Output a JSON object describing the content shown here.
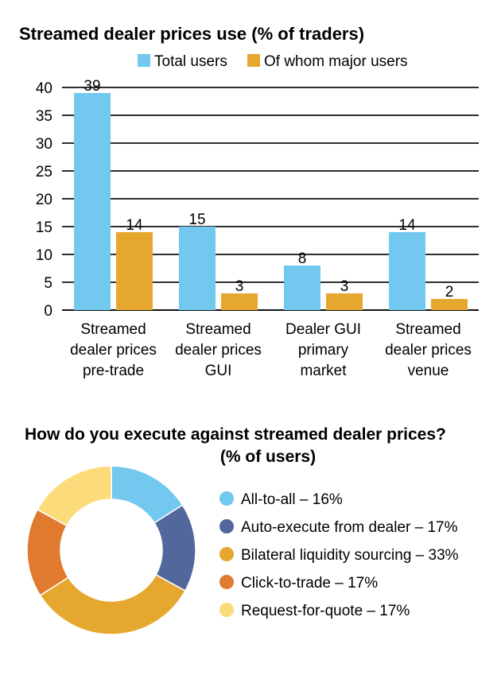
{
  "chart_data": [
    {
      "type": "bar",
      "title": "Streamed dealer prices use (% of traders)",
      "categories": [
        [
          "Streamed",
          "dealer prices",
          "pre-trade"
        ],
        [
          "Streamed",
          "dealer prices",
          "GUI"
        ],
        [
          "Dealer GUI",
          "primary",
          "market"
        ],
        [
          "Streamed",
          "dealer prices",
          "venue"
        ]
      ],
      "series": [
        {
          "name": "Total users",
          "values": [
            39,
            15,
            8,
            14
          ],
          "color": "#72c8ef"
        },
        {
          "name": "Of whom major users",
          "values": [
            14,
            3,
            3,
            2
          ],
          "color": "#e6a72f"
        }
      ],
      "ylim": [
        0,
        40
      ],
      "yticks": [
        0,
        5,
        10,
        15,
        20,
        25,
        30,
        35,
        40
      ],
      "grid": true,
      "legend": "top"
    },
    {
      "type": "pie",
      "title_lines": [
        "How do you execute against streamed dealer prices?",
        "(% of users)"
      ],
      "slices": [
        {
          "label": "All-to-all – 16%",
          "value": 16,
          "color": "#72c8ef"
        },
        {
          "label": "Auto-execute from dealer – 17%",
          "value": 17,
          "color": "#52679c"
        },
        {
          "label": "Bilateral liquidity sourcing – 33%",
          "value": 33,
          "color": "#e6a72f"
        },
        {
          "label": "Click-to-trade – 17%",
          "value": 17,
          "color": "#e07a2e"
        },
        {
          "label": "Request-for-quote – 17%",
          "value": 17,
          "color": "#fcdc7a"
        }
      ],
      "legend": "right"
    }
  ]
}
